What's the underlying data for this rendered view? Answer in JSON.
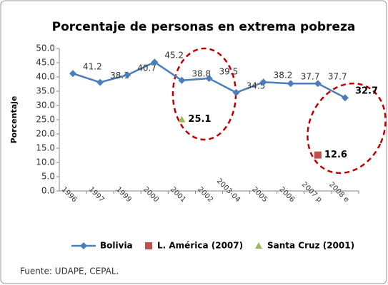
{
  "chart_data": {
    "type": "line",
    "title": "Porcentaje de personas en extrema pobreza",
    "y_label": "Porcentaje",
    "source": "Fuente: UDAPE, CEPAL.",
    "categories": [
      "1996",
      "1997",
      "1999",
      "2000",
      "2001",
      "2002",
      "2003-04",
      "2005",
      "2006",
      "2007 p",
      "2008 e"
    ],
    "series": [
      {
        "name": "Bolivia",
        "color": "#4a7ebb",
        "marker": "diamond",
        "values": [
          41.2,
          38.1,
          40.7,
          45.2,
          38.8,
          39.5,
          34.5,
          38.2,
          37.7,
          37.7,
          32.7
        ]
      },
      {
        "name": "L. América (2007)",
        "color": "#c0504d",
        "marker": "square",
        "values": [
          null,
          null,
          null,
          null,
          null,
          null,
          null,
          null,
          null,
          12.6,
          null
        ]
      },
      {
        "name": "Santa Cruz (2001)",
        "color": "#9bbb59",
        "marker": "triangle",
        "values": [
          null,
          null,
          null,
          null,
          25.1,
          null,
          null,
          null,
          null,
          null,
          null
        ]
      }
    ],
    "ylim": [
      0,
      50
    ],
    "yticks": [
      {
        "value": 0,
        "label": "0.0"
      },
      {
        "value": 5,
        "label": "5.0"
      },
      {
        "value": 10,
        "label": "10.0"
      },
      {
        "value": 15,
        "label": "15.0"
      },
      {
        "value": 20,
        "label": "20.0"
      },
      {
        "value": 25,
        "label": "25.0"
      },
      {
        "value": 30,
        "label": "30.0"
      },
      {
        "value": 35,
        "label": "35.0"
      },
      {
        "value": 40,
        "label": "40.0"
      },
      {
        "value": 45,
        "label": "45.0"
      },
      {
        "value": 50,
        "label": "50.0"
      }
    ],
    "grid": false,
    "legend": "bottom"
  }
}
